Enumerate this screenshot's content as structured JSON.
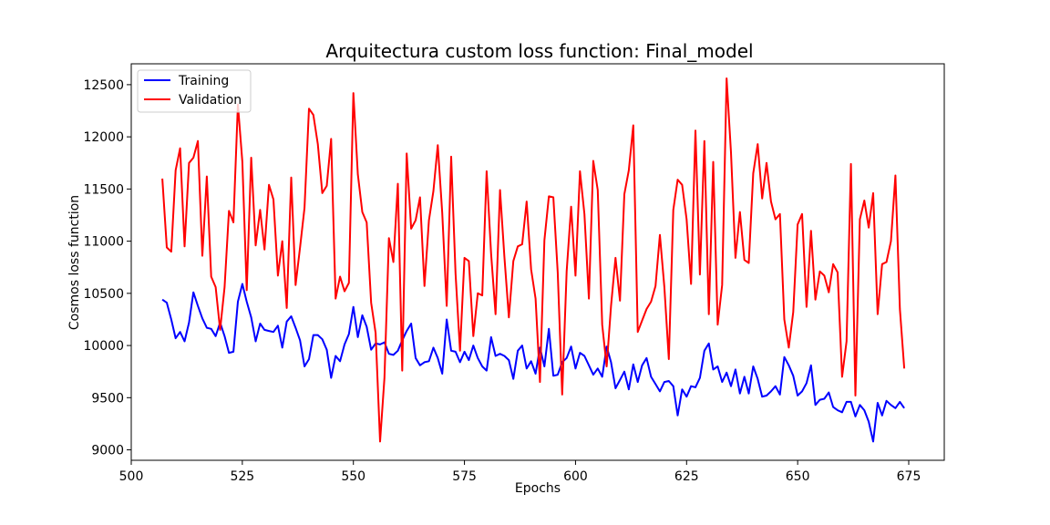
{
  "chart_data": {
    "type": "line",
    "title": "Arquitectura custom loss function: Final_model",
    "xlabel": "Epochs",
    "ylabel": "Cosmos loss function",
    "xlim": [
      500,
      683
    ],
    "ylim": [
      8900,
      12700
    ],
    "xticks": [
      500,
      525,
      550,
      575,
      600,
      625,
      650,
      675
    ],
    "yticks": [
      9000,
      9500,
      10000,
      10500,
      11000,
      11500,
      12000,
      12500
    ],
    "grid": false,
    "legend_position": "upper-left",
    "x": [
      507,
      508,
      509,
      510,
      511,
      512,
      513,
      514,
      515,
      516,
      517,
      518,
      519,
      520,
      521,
      522,
      523,
      524,
      525,
      526,
      527,
      528,
      529,
      530,
      531,
      532,
      533,
      534,
      535,
      536,
      537,
      538,
      539,
      540,
      541,
      542,
      543,
      544,
      545,
      546,
      547,
      548,
      549,
      550,
      551,
      552,
      553,
      554,
      555,
      556,
      557,
      558,
      559,
      560,
      561,
      562,
      563,
      564,
      565,
      566,
      567,
      568,
      569,
      570,
      571,
      572,
      573,
      574,
      575,
      576,
      577,
      578,
      579,
      580,
      581,
      582,
      583,
      584,
      585,
      586,
      587,
      588,
      589,
      590,
      591,
      592,
      593,
      594,
      595,
      596,
      597,
      598,
      599,
      600,
      601,
      602,
      603,
      604,
      605,
      606,
      607,
      608,
      609,
      610,
      611,
      612,
      613,
      614,
      615,
      616,
      617,
      618,
      619,
      620,
      621,
      622,
      623,
      624,
      625,
      626,
      627,
      628,
      629,
      630,
      631,
      632,
      633,
      634,
      635,
      636,
      637,
      638,
      639,
      640,
      641,
      642,
      643,
      644,
      645,
      646,
      647,
      648,
      649,
      650,
      651,
      652,
      653,
      654,
      655,
      656,
      657,
      658,
      659,
      660,
      661,
      662,
      663,
      664,
      665,
      666,
      667,
      668,
      669,
      670,
      671,
      672,
      673,
      674
    ],
    "series": [
      {
        "name": "Training",
        "color": "#0000ff",
        "values": [
          10440,
          10410,
          10250,
          10070,
          10130,
          10040,
          10220,
          10510,
          10380,
          10260,
          10170,
          10160,
          10090,
          10220,
          10090,
          9930,
          9940,
          10420,
          10590,
          10420,
          10270,
          10040,
          10210,
          10150,
          10140,
          10130,
          10190,
          9980,
          10230,
          10280,
          10170,
          10050,
          9800,
          9870,
          10100,
          10100,
          10060,
          9960,
          9690,
          9900,
          9850,
          10010,
          10110,
          10370,
          10080,
          10290,
          10180,
          9960,
          10020,
          10010,
          10030,
          9920,
          9910,
          9950,
          10050,
          10140,
          10210,
          9880,
          9810,
          9840,
          9850,
          9980,
          9880,
          9730,
          10250,
          9950,
          9940,
          9840,
          9940,
          9860,
          10000,
          9880,
          9800,
          9760,
          10080,
          9900,
          9920,
          9900,
          9860,
          9680,
          9950,
          10000,
          9780,
          9850,
          9730,
          9980,
          9800,
          10160,
          9710,
          9720,
          9840,
          9880,
          9990,
          9780,
          9930,
          9900,
          9810,
          9720,
          9780,
          9700,
          9990,
          9840,
          9590,
          9670,
          9750,
          9580,
          9820,
          9650,
          9810,
          9880,
          9700,
          9630,
          9560,
          9650,
          9660,
          9610,
          9330,
          9580,
          9510,
          9610,
          9600,
          9690,
          9950,
          10020,
          9770,
          9800,
          9650,
          9740,
          9610,
          9770,
          9540,
          9700,
          9540,
          9800,
          9680,
          9510,
          9520,
          9560,
          9610,
          9530,
          9890,
          9810,
          9710,
          9520,
          9560,
          9640,
          9810,
          9430,
          9480,
          9490,
          9550,
          9410,
          9380,
          9360,
          9460,
          9460,
          9320,
          9430,
          9380,
          9270,
          9080,
          9450,
          9330,
          9470,
          9430,
          9400,
          9460,
          9400
        ]
      },
      {
        "name": "Validation",
        "color": "#ff0000",
        "values": [
          11600,
          10940,
          10900,
          11680,
          11890,
          10950,
          11750,
          11800,
          11960,
          10860,
          11620,
          10660,
          10560,
          10150,
          10560,
          11290,
          11180,
          12310,
          11760,
          10530,
          11800,
          10960,
          11300,
          10920,
          11540,
          11400,
          10670,
          11000,
          10360,
          11610,
          10580,
          10940,
          11320,
          12270,
          12210,
          11930,
          11460,
          11530,
          11980,
          10450,
          10660,
          10520,
          10600,
          12420,
          11640,
          11280,
          11180,
          10410,
          10120,
          9080,
          9690,
          11030,
          10800,
          11550,
          9760,
          11840,
          11120,
          11200,
          11420,
          10570,
          11200,
          11480,
          11920,
          11270,
          10380,
          11810,
          10690,
          9950,
          10840,
          10810,
          10090,
          10500,
          10480,
          11670,
          10880,
          10300,
          11490,
          10850,
          10270,
          10810,
          10950,
          10970,
          11380,
          10730,
          10450,
          9650,
          11010,
          11430,
          11420,
          10700,
          9530,
          10710,
          11330,
          10670,
          11670,
          11260,
          10450,
          11770,
          11490,
          10200,
          9800,
          10380,
          10840,
          10430,
          11450,
          11680,
          12110,
          10130,
          10240,
          10350,
          10420,
          10570,
          11060,
          10560,
          9870,
          11300,
          11590,
          11540,
          11210,
          10590,
          12060,
          10680,
          11960,
          10300,
          11760,
          10200,
          10580,
          12560,
          11850,
          10840,
          11280,
          10820,
          10790,
          11650,
          11930,
          11410,
          11750,
          11380,
          11210,
          11260,
          10250,
          9980,
          10320,
          11160,
          11260,
          10370,
          11100,
          10440,
          10710,
          10670,
          10510,
          10780,
          10700,
          9700,
          10040,
          11740,
          9520,
          11210,
          11390,
          11130,
          11460,
          10300,
          10780,
          10800,
          11000,
          11630,
          10350,
          9780
        ]
      }
    ]
  }
}
